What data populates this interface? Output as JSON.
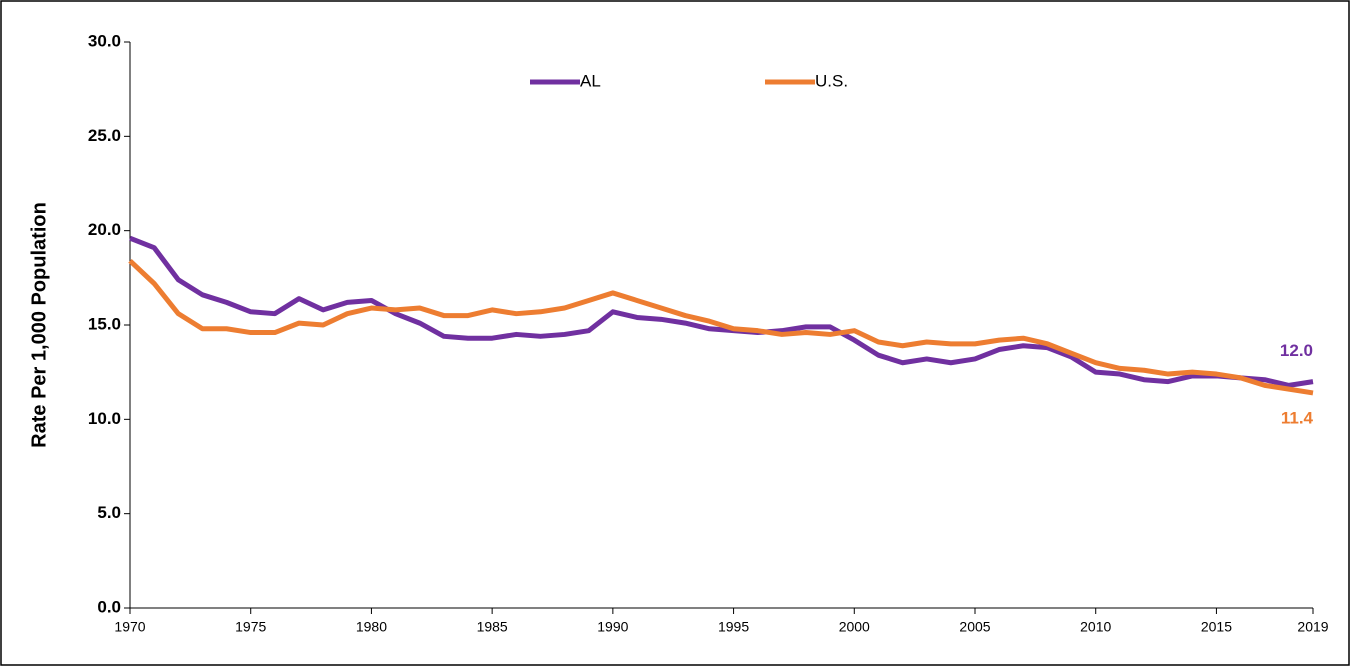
{
  "chart_data": {
    "type": "line",
    "y_axis_label": "Rate Per 1,000 Population",
    "x": [
      1970,
      1971,
      1972,
      1973,
      1974,
      1975,
      1976,
      1977,
      1978,
      1979,
      1980,
      1981,
      1982,
      1983,
      1984,
      1985,
      1986,
      1987,
      1988,
      1989,
      1990,
      1991,
      1992,
      1993,
      1994,
      1995,
      1996,
      1997,
      1998,
      1999,
      2000,
      2001,
      2002,
      2003,
      2004,
      2005,
      2006,
      2007,
      2008,
      2009,
      2010,
      2011,
      2012,
      2013,
      2014,
      2015,
      2016,
      2017,
      2018,
      2019
    ],
    "series": [
      {
        "name": "AL",
        "color": "#7030a0",
        "end_label": "12.0",
        "values": [
          19.6,
          19.1,
          17.4,
          16.6,
          16.2,
          15.7,
          15.6,
          16.4,
          15.8,
          16.2,
          16.3,
          15.6,
          15.1,
          14.4,
          14.3,
          14.3,
          14.5,
          14.4,
          14.5,
          14.7,
          15.7,
          15.4,
          15.3,
          15.1,
          14.8,
          14.7,
          14.6,
          14.7,
          14.9,
          14.9,
          14.2,
          13.4,
          13.0,
          13.2,
          13.0,
          13.2,
          13.7,
          13.9,
          13.8,
          13.3,
          12.5,
          12.4,
          12.1,
          12.0,
          12.3,
          12.3,
          12.2,
          12.1,
          11.8,
          12.0
        ]
      },
      {
        "name": "U.S.",
        "color": "#ed7d31",
        "end_label": "11.4",
        "values": [
          18.4,
          17.2,
          15.6,
          14.8,
          14.8,
          14.6,
          14.6,
          15.1,
          15.0,
          15.6,
          15.9,
          15.8,
          15.9,
          15.5,
          15.5,
          15.8,
          15.6,
          15.7,
          15.9,
          16.3,
          16.7,
          16.3,
          15.9,
          15.5,
          15.2,
          14.8,
          14.7,
          14.5,
          14.6,
          14.5,
          14.7,
          14.1,
          13.9,
          14.1,
          14.0,
          14.0,
          14.2,
          14.3,
          14.0,
          13.5,
          13.0,
          12.7,
          12.6,
          12.4,
          12.5,
          12.4,
          12.2,
          11.8,
          11.6,
          11.4
        ]
      }
    ],
    "xlim": [
      1970,
      2019
    ],
    "xticks": [
      1970,
      1975,
      1980,
      1985,
      1990,
      1995,
      2000,
      2005,
      2010,
      2015,
      2019
    ],
    "ylim": [
      0,
      30
    ],
    "yticks": [
      {
        "value": 0,
        "label": "0.0"
      },
      {
        "value": 5,
        "label": "5.0"
      },
      {
        "value": 10,
        "label": "10.0"
      },
      {
        "value": 15,
        "label": "15.0"
      },
      {
        "value": 20,
        "label": "20.0"
      },
      {
        "value": 25,
        "label": "25.0"
      },
      {
        "value": 30,
        "label": "30.0"
      }
    ],
    "legend": "top"
  }
}
